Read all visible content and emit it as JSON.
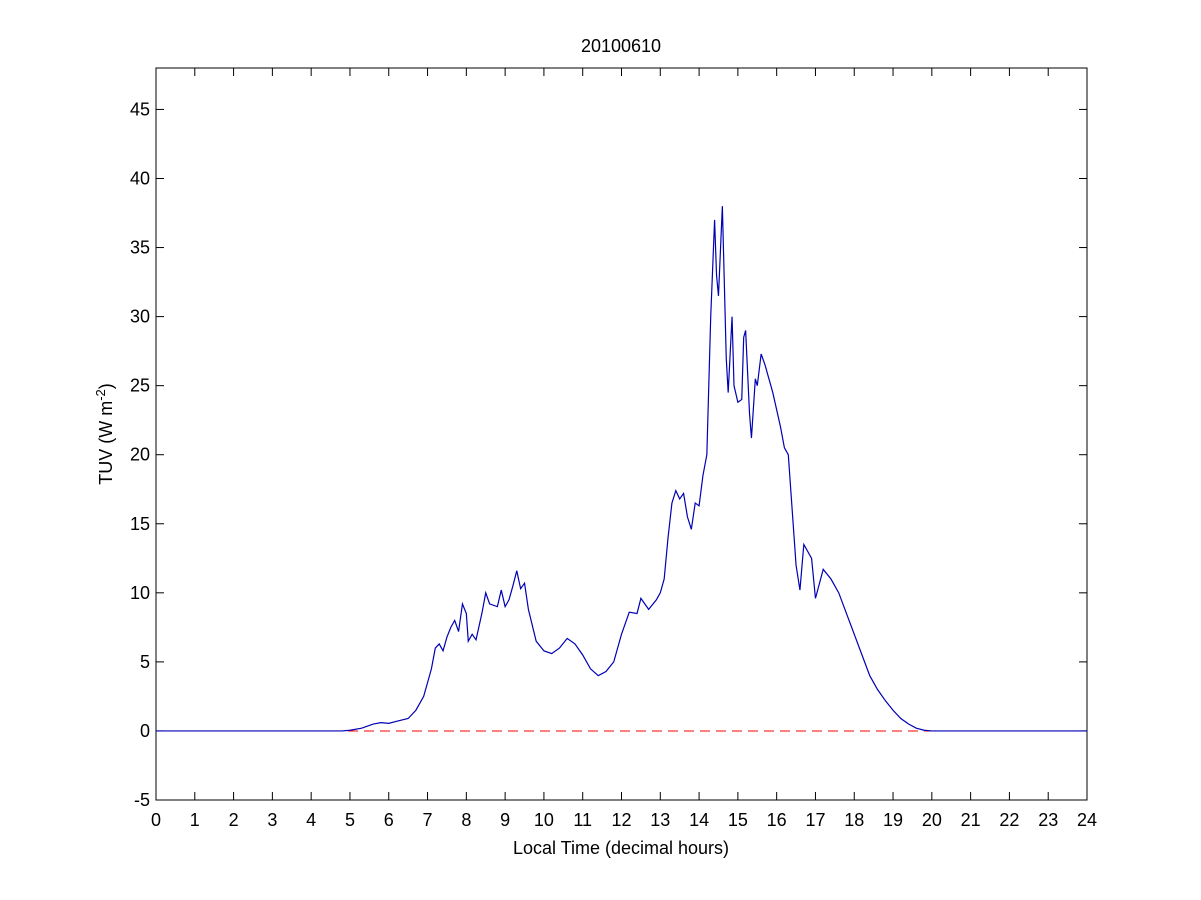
{
  "chart_data": {
    "type": "line",
    "title": "20100610",
    "xlabel": "Local Time (decimal hours)",
    "ylabel": [
      "TUV (W m",
      "-2",
      ")"
    ],
    "x": [
      0,
      4.8,
      5.0,
      5.3,
      5.6,
      5.8,
      6.0,
      6.2,
      6.5,
      6.7,
      6.9,
      7.0,
      7.1,
      7.2,
      7.3,
      7.4,
      7.5,
      7.6,
      7.7,
      7.8,
      7.9,
      8.0,
      8.05,
      8.15,
      8.25,
      8.4,
      8.5,
      8.6,
      8.8,
      8.9,
      9.0,
      9.1,
      9.2,
      9.3,
      9.4,
      9.5,
      9.6,
      9.8,
      10.0,
      10.2,
      10.4,
      10.6,
      10.8,
      11.0,
      11.2,
      11.4,
      11.6,
      11.8,
      12.0,
      12.2,
      12.4,
      12.5,
      12.7,
      12.9,
      13.0,
      13.1,
      13.2,
      13.3,
      13.4,
      13.5,
      13.6,
      13.7,
      13.8,
      13.9,
      14.0,
      14.1,
      14.2,
      14.3,
      14.4,
      14.45,
      14.5,
      14.6,
      14.7,
      14.75,
      14.85,
      14.9,
      15.0,
      15.1,
      15.15,
      15.2,
      15.3,
      15.35,
      15.45,
      15.5,
      15.6,
      15.7,
      15.9,
      16.1,
      16.2,
      16.3,
      16.4,
      16.5,
      16.6,
      16.7,
      16.9,
      17.0,
      17.2,
      17.4,
      17.6,
      17.8,
      18.0,
      18.2,
      18.4,
      18.6,
      18.8,
      19.0,
      19.2,
      19.4,
      19.6,
      19.8,
      20.0,
      24
    ],
    "series": [
      {
        "color": "#0000b4",
        "values": [
          0,
          0,
          0.05,
          0.2,
          0.5,
          0.6,
          0.55,
          0.7,
          0.9,
          1.5,
          2.5,
          3.5,
          4.5,
          6.0,
          6.3,
          5.8,
          6.8,
          7.5,
          8.0,
          7.2,
          9.2,
          8.5,
          6.5,
          7.0,
          6.6,
          8.5,
          10.0,
          9.2,
          9.0,
          10.2,
          9.0,
          9.5,
          10.5,
          11.6,
          10.3,
          10.7,
          8.8,
          6.5,
          5.8,
          5.6,
          6.0,
          6.7,
          6.3,
          5.5,
          4.5,
          4.0,
          4.3,
          5.0,
          7.0,
          8.6,
          8.5,
          9.6,
          8.8,
          9.5,
          10.0,
          11.0,
          14.0,
          16.5,
          17.4,
          16.8,
          17.2,
          15.5,
          14.6,
          16.5,
          16.3,
          18.5,
          20.0,
          30.0,
          37.0,
          33.0,
          31.5,
          38.0,
          27.0,
          24.5,
          30.0,
          25.0,
          23.8,
          24.0,
          28.5,
          29.0,
          23.0,
          21.2,
          25.5,
          25.0,
          27.3,
          26.5,
          24.5,
          22.0,
          20.5,
          20.0,
          16.0,
          12.0,
          10.2,
          13.5,
          12.5,
          9.6,
          11.7,
          11.0,
          10.0,
          8.5,
          7.0,
          5.5,
          4.0,
          3.0,
          2.2,
          1.5,
          0.9,
          0.5,
          0.2,
          0.05,
          0,
          0
        ]
      }
    ],
    "hline": {
      "value": 0,
      "color": "#ff0000",
      "style": "dashed"
    },
    "xlim": [
      0,
      24
    ],
    "xticks": [
      0,
      1,
      2,
      3,
      4,
      5,
      6,
      7,
      8,
      9,
      10,
      11,
      12,
      13,
      14,
      15,
      16,
      17,
      18,
      19,
      20,
      21,
      22,
      23,
      24
    ],
    "ylim": [
      -5,
      48
    ],
    "yticks": [
      -5,
      0,
      5,
      10,
      15,
      20,
      25,
      30,
      35,
      40,
      45
    ],
    "grid": false
  }
}
